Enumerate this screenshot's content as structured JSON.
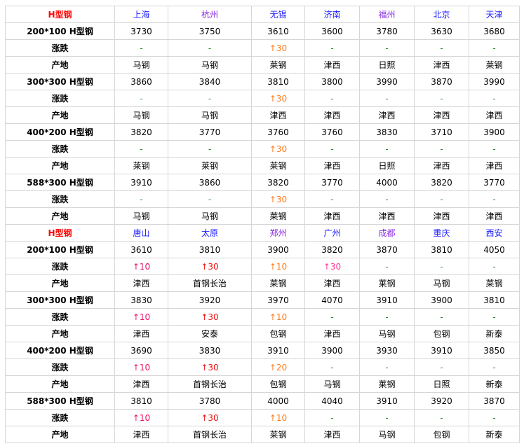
{
  "colors": {
    "header_label": "#ff0000",
    "city_blue": "#2020ff",
    "city_purple": "#8a2be2",
    "dash": "#2a8a2a",
    "up_orange": "#ff7a1a",
    "up_red": "#ee1133",
    "up_pink": "#ff3399"
  },
  "labels": {
    "change": "涨跌",
    "origin": "产地"
  },
  "blocks": [
    {
      "header": "H型钢",
      "cities": [
        {
          "name": "上海",
          "color": "blue"
        },
        {
          "name": "杭州",
          "color": "purple"
        },
        {
          "name": "无锡",
          "color": "blue"
        },
        {
          "name": "济南",
          "color": "blue"
        },
        {
          "name": "福州",
          "color": "purple"
        },
        {
          "name": "北京",
          "color": "blue"
        },
        {
          "name": "天津",
          "color": "blue"
        }
      ],
      "change_colors": [
        "#ff7a1a",
        "#ff7a1a",
        "#ff7a1a",
        "#ff7a1a",
        "#ff7a1a",
        "#ff7a1a",
        "#ff7a1a"
      ],
      "products": [
        {
          "name": "200*100 H型钢",
          "prices": [
            "3730",
            "3750",
            "3610",
            "3600",
            "3780",
            "3630",
            "3680"
          ],
          "changes": [
            "-",
            "-",
            "↑30",
            "-",
            "-",
            "-",
            "-"
          ],
          "origins": [
            "马钢",
            "马钢",
            "莱钢",
            "津西",
            "日照",
            "津西",
            "莱钢"
          ]
        },
        {
          "name": "300*300 H型钢",
          "prices": [
            "3860",
            "3840",
            "3810",
            "3800",
            "3990",
            "3870",
            "3990"
          ],
          "changes": [
            "-",
            "-",
            "↑30",
            "-",
            "-",
            "-",
            "-"
          ],
          "origins": [
            "马钢",
            "马钢",
            "津西",
            "津西",
            "津西",
            "津西",
            "津西"
          ]
        },
        {
          "name": "400*200 H型钢",
          "prices": [
            "3820",
            "3770",
            "3760",
            "3760",
            "3830",
            "3710",
            "3900"
          ],
          "changes": [
            "-",
            "-",
            "↑30",
            "-",
            "-",
            "-",
            "-"
          ],
          "origins": [
            "莱钢",
            "莱钢",
            "莱钢",
            "津西",
            "日照",
            "津西",
            "津西"
          ]
        },
        {
          "name": "588*300 H型钢",
          "prices": [
            "3910",
            "3860",
            "3820",
            "3770",
            "4000",
            "3820",
            "3770"
          ],
          "changes": [
            "-",
            "-",
            "↑30",
            "-",
            "-",
            "-",
            "-"
          ],
          "origins": [
            "马钢",
            "马钢",
            "莱钢",
            "津西",
            "津西",
            "津西",
            "津西"
          ]
        }
      ]
    },
    {
      "header": "H型钢",
      "cities": [
        {
          "name": "唐山",
          "color": "blue"
        },
        {
          "name": "太原",
          "color": "blue"
        },
        {
          "name": "郑州",
          "color": "purple"
        },
        {
          "name": "广州",
          "color": "blue"
        },
        {
          "name": "成都",
          "color": "purple"
        },
        {
          "name": "重庆",
          "color": "blue"
        },
        {
          "name": "西安",
          "color": "blue"
        }
      ],
      "change_colors": [
        "#ee1166",
        "#ee1111",
        "#ff7a1a",
        "#ff3399",
        "#ff7a1a",
        "#ff7a1a",
        "#ff7a1a"
      ],
      "products": [
        {
          "name": "200*100 H型钢",
          "prices": [
            "3610",
            "3810",
            "3900",
            "3820",
            "3870",
            "3810",
            "4050"
          ],
          "changes": [
            "↑10",
            "↑30",
            "↑10",
            "↑30",
            "-",
            "-",
            "-"
          ],
          "origins": [
            "津西",
            "首钢长治",
            "莱钢",
            "津西",
            "莱钢",
            "马钢",
            "莱钢"
          ]
        },
        {
          "name": "300*300 H型钢",
          "prices": [
            "3830",
            "3920",
            "3970",
            "4070",
            "3910",
            "3900",
            "3810"
          ],
          "changes": [
            "↑10",
            "↑30",
            "↑10",
            "-",
            "-",
            "-",
            "-"
          ],
          "origins": [
            "津西",
            "安泰",
            "包钢",
            "津西",
            "马钢",
            "包钢",
            "新泰"
          ]
        },
        {
          "name": "400*200 H型钢",
          "prices": [
            "3690",
            "3830",
            "3910",
            "3900",
            "3930",
            "3910",
            "3850"
          ],
          "changes": [
            "↑10",
            "↑30",
            "↑20",
            "-",
            "-",
            "-",
            "-"
          ],
          "origins": [
            "津西",
            "首钢长治",
            "包钢",
            "马钢",
            "莱钢",
            "日照",
            "新泰"
          ]
        },
        {
          "name": "588*300 H型钢",
          "prices": [
            "3810",
            "3780",
            "4000",
            "4040",
            "3910",
            "3920",
            "3870"
          ],
          "changes": [
            "↑10",
            "↑30",
            "↑10",
            "-",
            "-",
            "-",
            "-"
          ],
          "origins": [
            "津西",
            "首钢长治",
            "莱钢",
            "津西",
            "马钢",
            "包钢",
            "新泰"
          ]
        }
      ]
    }
  ]
}
